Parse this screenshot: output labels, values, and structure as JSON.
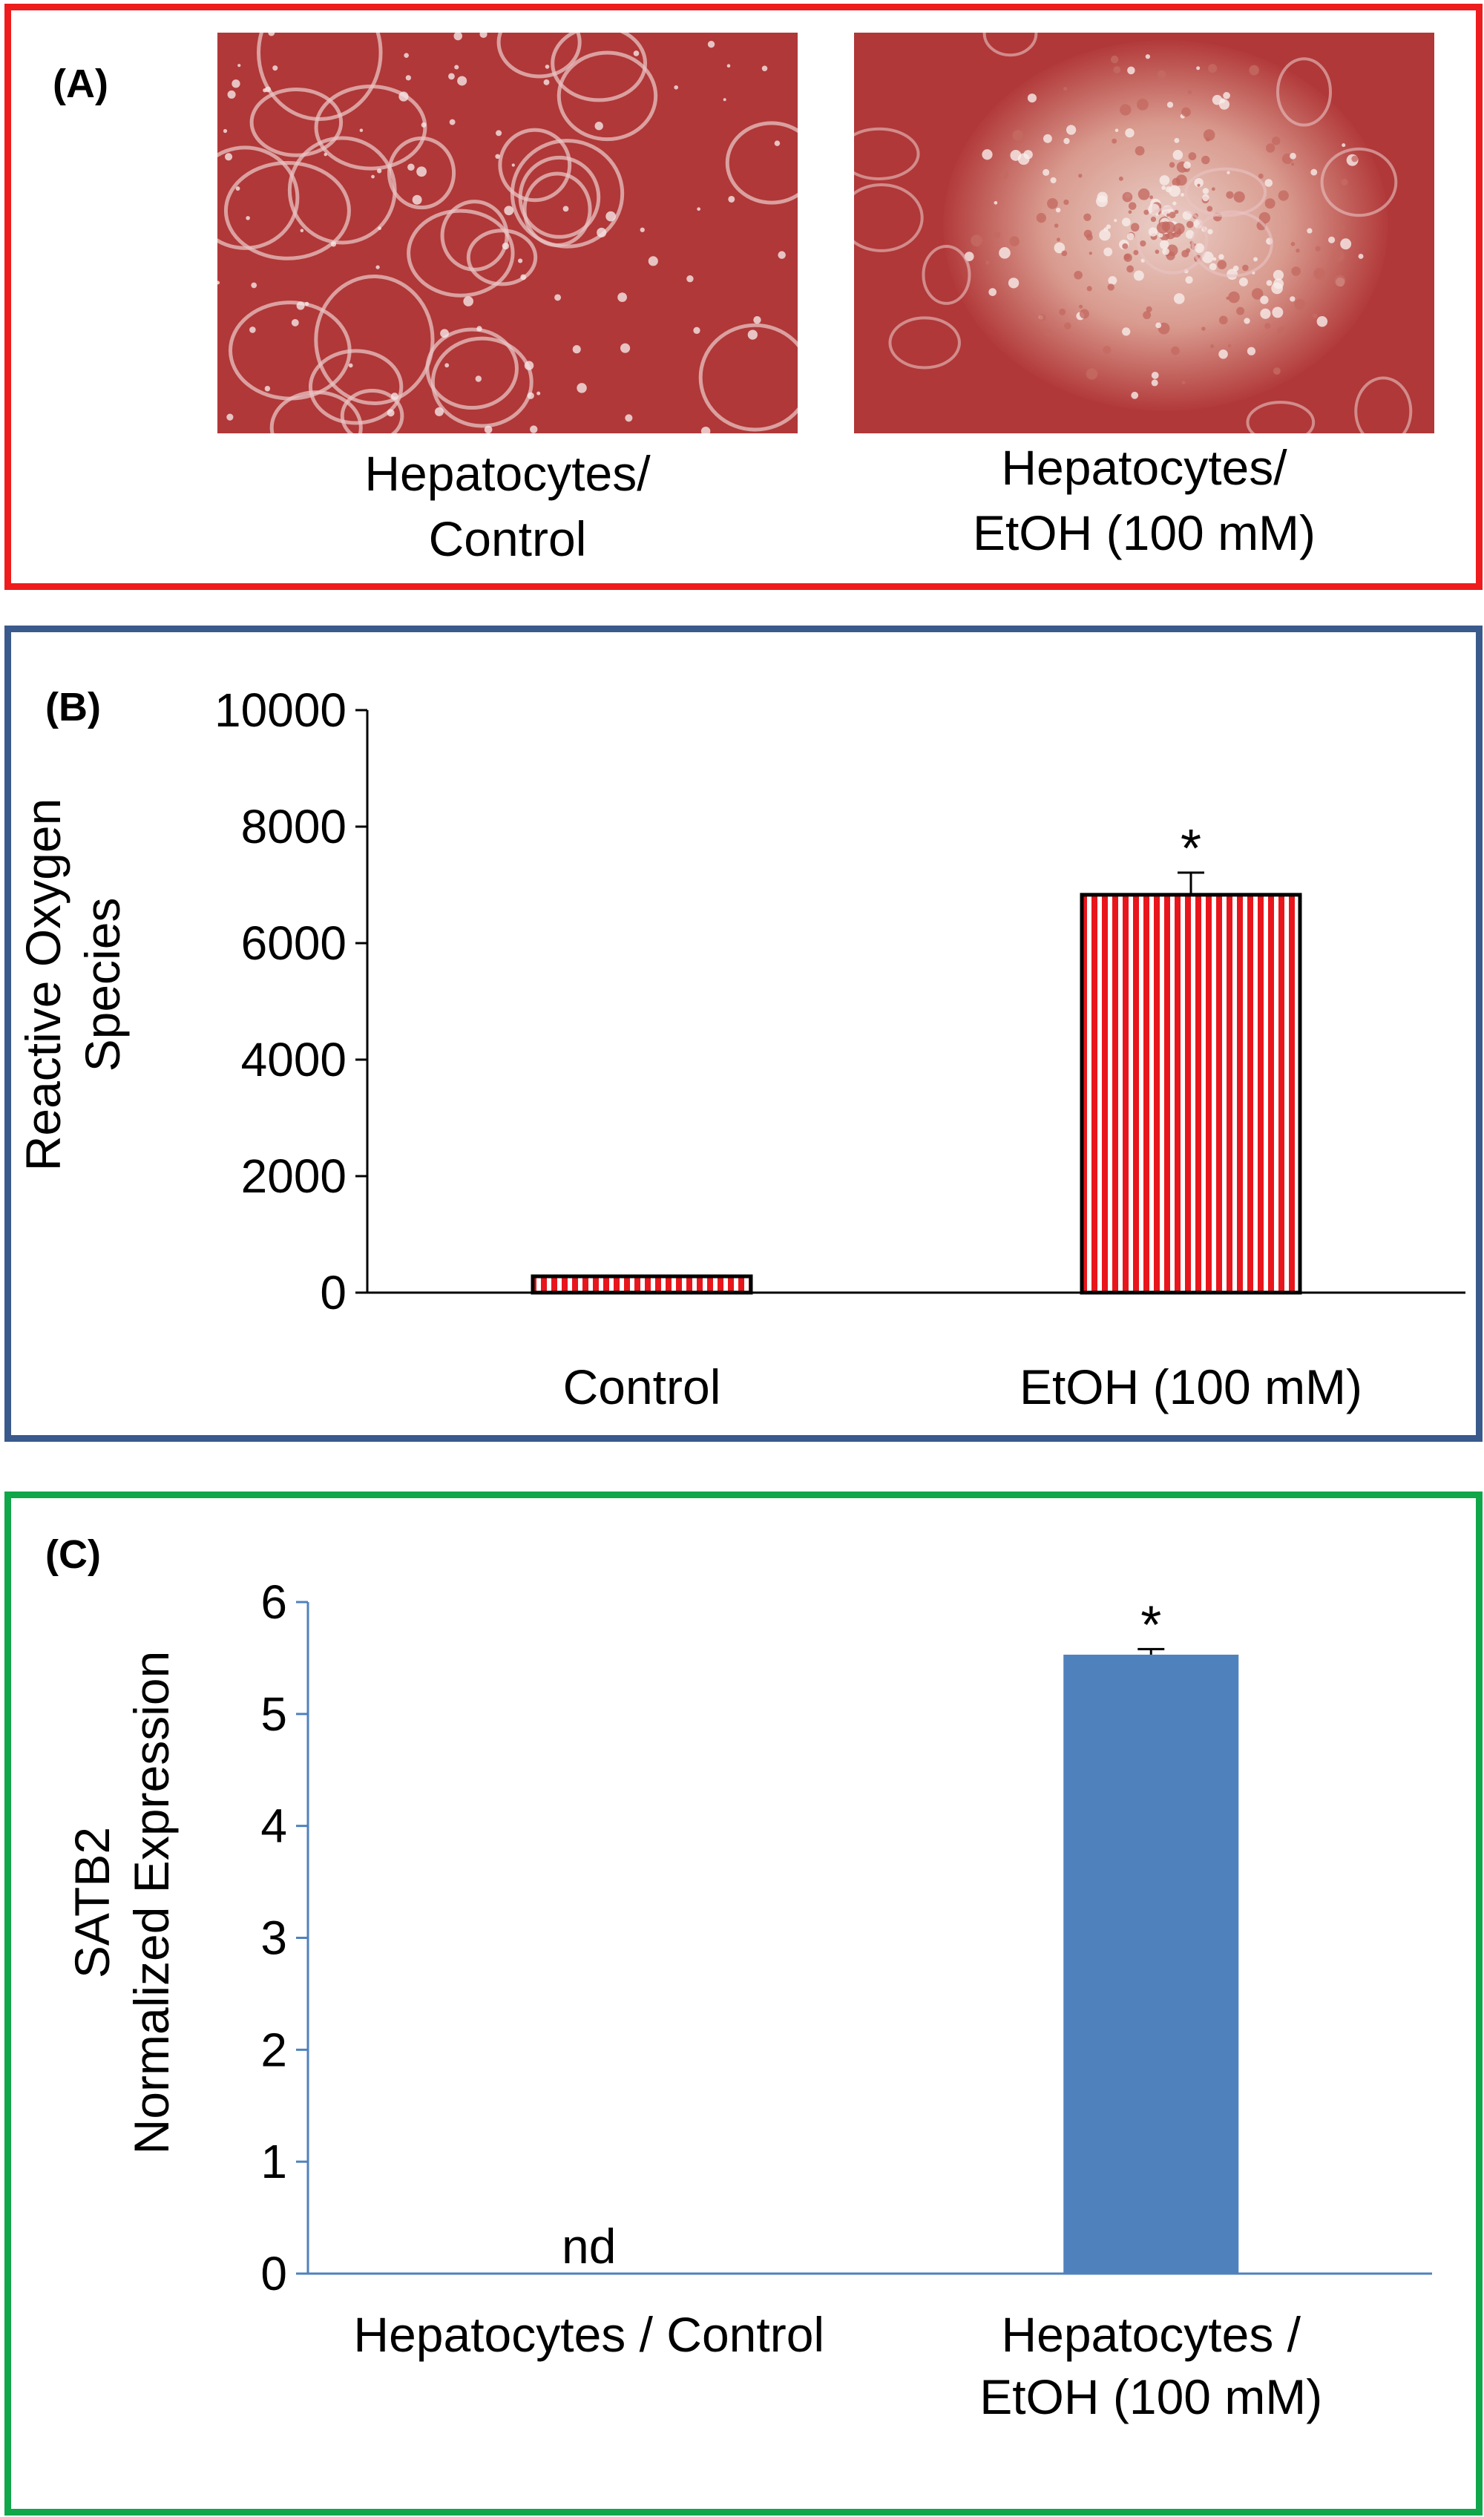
{
  "colors": {
    "panel_a_border": "#ee1c1c",
    "panel_b_border": "#3a5a8c",
    "panel_c_border": "#10a64a",
    "micro_tint": "#b23a3a",
    "stripe_red": "#e8161c",
    "bar_blue": "#4f81bd",
    "axis_blue": "#4f81bd"
  },
  "panel_a": {
    "label": "(A)",
    "images": [
      {
        "icon": "microscopy-hepatocytes-control",
        "caption_lines": [
          "Hepatocytes/",
          "Control"
        ]
      },
      {
        "icon": "microscopy-hepatocytes-etoh",
        "caption_lines": [
          "Hepatocytes/",
          "EtOH (100 mM)"
        ]
      }
    ]
  },
  "panel_b": {
    "label": "(B)",
    "ylabel_lines": [
      "Reactive Oxygen",
      "Species"
    ]
  },
  "panel_c": {
    "label": "(C)",
    "ylabel_lines": [
      "SATB2",
      "Normalized Expression"
    ]
  },
  "chart_data": [
    {
      "panel": "B",
      "type": "bar",
      "categories": [
        "Control",
        "EtOH (100 mM)"
      ],
      "values": [
        280,
        6830
      ],
      "errors": [
        0,
        380
      ],
      "annotations": [
        "",
        "*"
      ],
      "ylim": [
        0,
        10000
      ],
      "yticks": [
        0,
        2000,
        4000,
        6000,
        8000,
        10000
      ],
      "ytick_labels": [
        "0",
        "2000",
        "4000",
        "6000",
        "8000",
        "10000"
      ],
      "xlabel": "",
      "ylabel": "Reactive Oxygen Species",
      "bar_style": "red-white vertical stripes, black outline",
      "grid": false,
      "legend": "none"
    },
    {
      "panel": "C",
      "type": "bar",
      "categories": [
        "Hepatocytes / Control",
        "Hepatocytes / EtOH (100 mM)"
      ],
      "category_lines": [
        [
          "Hepatocytes / Control"
        ],
        [
          "Hepatocytes /",
          "EtOH (100 mM)"
        ]
      ],
      "values": [
        0,
        5.53
      ],
      "errors": [
        0,
        0.05
      ],
      "annotations": [
        "nd",
        "*"
      ],
      "ylim": [
        0,
        6
      ],
      "yticks": [
        0,
        1,
        2,
        3,
        4,
        5,
        6
      ],
      "ytick_labels": [
        "0",
        "1",
        "2",
        "3",
        "4",
        "5",
        "6"
      ],
      "xlabel": "",
      "ylabel": "SATB2 Normalized Expression",
      "bar_style": "solid blue",
      "grid": false,
      "legend": "none"
    }
  ]
}
